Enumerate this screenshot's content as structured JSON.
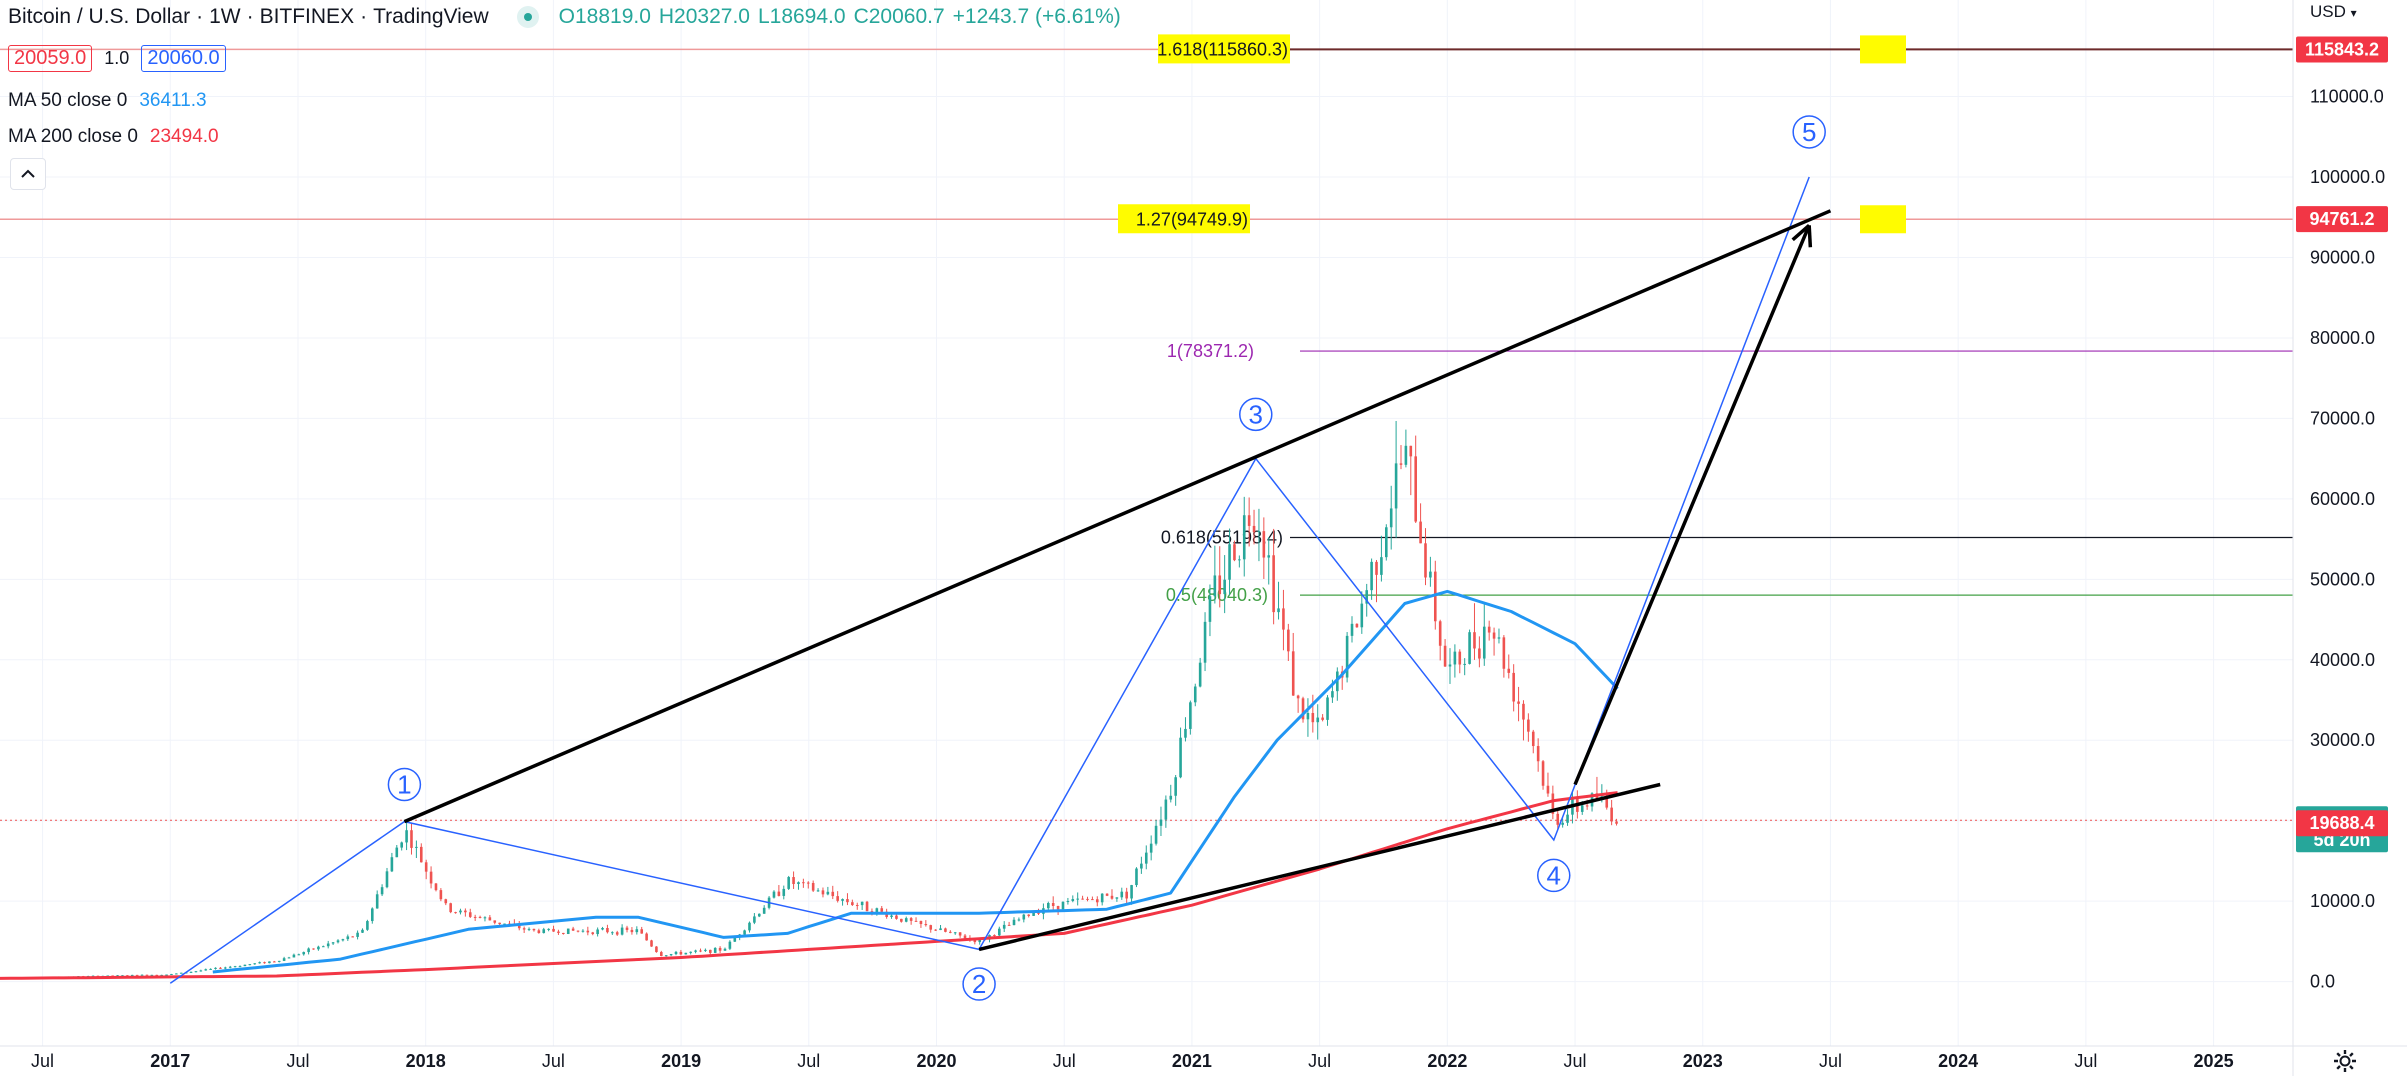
{
  "header": {
    "symbol": "Bitcoin / U.S. Dollar",
    "interval": "1W",
    "exchange": "BITFINEX",
    "platform": "TradingView",
    "ohlc": {
      "open": "O18819.0",
      "high": "H20327.0",
      "low": "L18694.0",
      "close": "C20060.7",
      "change": "+1243.7 (+6.61%)"
    },
    "sell_price": "20059.0",
    "spread": "1.0",
    "buy_price": "20060.0",
    "currency": "USD"
  },
  "indicators": [
    {
      "label": "MA 50 close 0",
      "value": "36411.3",
      "color": "#2196f3"
    },
    {
      "label": "MA 200 close 0",
      "value": "23494.0",
      "color": "#f23645"
    }
  ],
  "chart_data": {
    "type": "candlestick",
    "x_axis": {
      "ticks": [
        "Jul",
        "2017",
        "Jul",
        "2018",
        "Jul",
        "2019",
        "Jul",
        "2020",
        "Jul",
        "2021",
        "Jul",
        "2022",
        "Jul",
        "2023",
        "Jul",
        "2024",
        "Jul",
        "2025"
      ],
      "range": [
        "2016-05",
        "2025-06"
      ]
    },
    "y_axis": {
      "ticks": [
        "0.0",
        "10000.0",
        "20000.0",
        "30000.0",
        "40000.0",
        "50000.0",
        "60000.0",
        "70000.0",
        "80000.0",
        "90000.0",
        "100000.0",
        "110000.0"
      ],
      "range": [
        -8000,
        122000
      ]
    },
    "price_keypoints": [
      {
        "date": "2016-05",
        "price": 450
      },
      {
        "date": "2017-01",
        "price": 900
      },
      {
        "date": "2017-06",
        "price": 2600
      },
      {
        "date": "2017-10",
        "price": 6000
      },
      {
        "date": "2017-12",
        "price": 19000
      },
      {
        "date": "2018-02",
        "price": 9000
      },
      {
        "date": "2018-06",
        "price": 6300
      },
      {
        "date": "2018-11",
        "price": 6300
      },
      {
        "date": "2018-12",
        "price": 3300
      },
      {
        "date": "2019-03",
        "price": 4000
      },
      {
        "date": "2019-06",
        "price": 12500
      },
      {
        "date": "2019-12",
        "price": 7200
      },
      {
        "date": "2020-03",
        "price": 5000
      },
      {
        "date": "2020-06",
        "price": 9300
      },
      {
        "date": "2020-10",
        "price": 11000
      },
      {
        "date": "2020-12",
        "price": 24000
      },
      {
        "date": "2021-02",
        "price": 48000
      },
      {
        "date": "2021-04",
        "price": 60000
      },
      {
        "date": "2021-06",
        "price": 34000
      },
      {
        "date": "2021-07",
        "price": 31000
      },
      {
        "date": "2021-09",
        "price": 47000
      },
      {
        "date": "2021-11",
        "price": 66000
      },
      {
        "date": "2022-01",
        "price": 38000
      },
      {
        "date": "2022-03",
        "price": 45000
      },
      {
        "date": "2022-05",
        "price": 30000
      },
      {
        "date": "2022-06",
        "price": 20000
      },
      {
        "date": "2022-08",
        "price": 23000
      },
      {
        "date": "2022-09",
        "price": 20060
      }
    ],
    "ma50_keypoints": [
      {
        "date": "2017-03",
        "price": 1200
      },
      {
        "date": "2017-09",
        "price": 2800
      },
      {
        "date": "2018-03",
        "price": 6500
      },
      {
        "date": "2018-09",
        "price": 8000
      },
      {
        "date": "2018-11",
        "price": 8000
      },
      {
        "date": "2019-03",
        "price": 5500
      },
      {
        "date": "2019-06",
        "price": 6000
      },
      {
        "date": "2019-09",
        "price": 8500
      },
      {
        "date": "2020-03",
        "price": 8500
      },
      {
        "date": "2020-09",
        "price": 9000
      },
      {
        "date": "2020-12",
        "price": 11000
      },
      {
        "date": "2021-03",
        "price": 23000
      },
      {
        "date": "2021-05",
        "price": 30000
      },
      {
        "date": "2021-08",
        "price": 38000
      },
      {
        "date": "2021-11",
        "price": 47000
      },
      {
        "date": "2022-01",
        "price": 48500
      },
      {
        "date": "2022-04",
        "price": 46000
      },
      {
        "date": "2022-07",
        "price": 42000
      },
      {
        "date": "2022-09",
        "price": 36411
      }
    ],
    "ma200_keypoints": [
      {
        "date": "2016-05",
        "price": 400
      },
      {
        "date": "2017-06",
        "price": 700
      },
      {
        "date": "2018-01",
        "price": 1500
      },
      {
        "date": "2019-01",
        "price": 3000
      },
      {
        "date": "2020-01",
        "price": 5000
      },
      {
        "date": "2020-07",
        "price": 6000
      },
      {
        "date": "2021-01",
        "price": 9500
      },
      {
        "date": "2021-07",
        "price": 14000
      },
      {
        "date": "2022-01",
        "price": 19000
      },
      {
        "date": "2022-06",
        "price": 22500
      },
      {
        "date": "2022-09",
        "price": 23494
      }
    ],
    "fib_levels": [
      {
        "label": "1.618(115860.3)",
        "price": 115860.3,
        "color": "#131722",
        "highlight": true,
        "line_color": "#ef9a9a"
      },
      {
        "label": "1.27(94749.9)",
        "price": 94749.9,
        "color": "#131722",
        "highlight": true,
        "line_color": "#ef9a9a"
      },
      {
        "label": "1(78371.2)",
        "price": 78371.2,
        "color": "#9c27b0",
        "highlight": false,
        "line_color": "#9c27b0"
      },
      {
        "label": "0.618(55198.4)",
        "price": 55198.4,
        "color": "#131722",
        "highlight": false,
        "line_color": "#131722"
      },
      {
        "label": "0.5(48040.3)",
        "price": 48040.3,
        "color": "#43a047",
        "highlight": false,
        "line_color": "#43a047"
      }
    ],
    "price_tags": [
      {
        "price": 115843.2,
        "text": "115843.2",
        "color": "#f23645"
      },
      {
        "price": 94761.2,
        "text": "94761.2",
        "color": "#f23645"
      },
      {
        "price": 20060.7,
        "text": "20060.7",
        "sub": "5d 20h",
        "color": "#26a69a"
      },
      {
        "price": 19688.4,
        "text": "19688.4",
        "color": "#f23645"
      }
    ],
    "waves": [
      {
        "label": "1",
        "date": "2017-12",
        "price": 19891,
        "label_price": 24500
      },
      {
        "label": "2",
        "date": "2020-03",
        "price": 4000,
        "label_price": -300
      },
      {
        "label": "3",
        "date": "2021-04",
        "price": 65000,
        "label_price": 70500
      },
      {
        "label": "4",
        "date": "2022-06",
        "price": 17600,
        "label_price": 13200
      },
      {
        "label": "5",
        "date": "2023-06",
        "price": 100000,
        "label_price": 105600
      }
    ],
    "trendlines": [
      {
        "from": {
          "date": "2017-12",
          "price": 19891
        },
        "to": {
          "date": "2023-07",
          "price": 95800
        },
        "color": "#000000"
      },
      {
        "from": {
          "date": "2020-03",
          "price": 4000
        },
        "to": {
          "date": "2022-11",
          "price": 24500
        },
        "color": "#000000"
      },
      {
        "from": {
          "date": "2022-07",
          "price": 24500
        },
        "to": {
          "date": "2023-06",
          "price": 94000
        },
        "color": "#000000",
        "arrow": true
      }
    ]
  }
}
